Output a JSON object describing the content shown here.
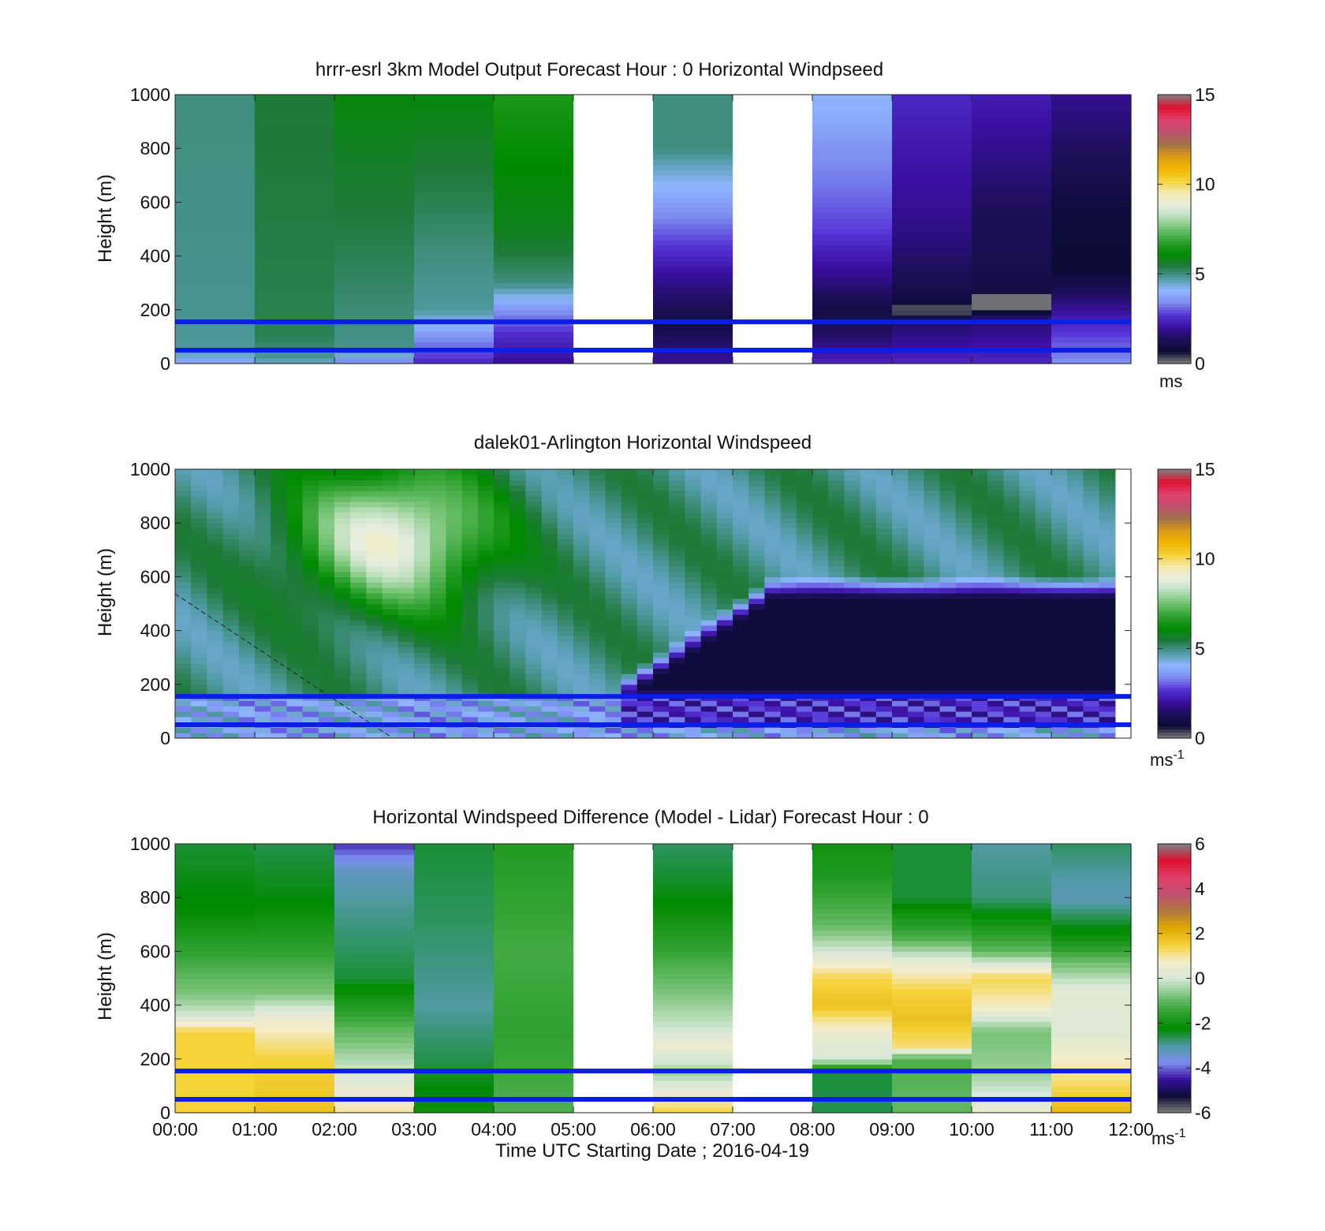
{
  "figure": {
    "xlabel": "Time UTC  Starting Date ; 2016-04-19",
    "time_ticks": [
      "00:00",
      "01:00",
      "02:00",
      "03:00",
      "04:00",
      "05:00",
      "06:00",
      "07:00",
      "08:00",
      "09:00",
      "10:00",
      "11:00",
      "12:00"
    ]
  },
  "colors": {
    "windspeed_colormap": [
      "#808080",
      "#0b0b33",
      "#1d0f5a",
      "#3a0fa0",
      "#5533d6",
      "#7d8ef0",
      "#8fb6ff",
      "#4f9aa3",
      "#1f7a3a",
      "#008a00",
      "#2fa12f",
      "#6cc06c",
      "#b7ddb7",
      "#e8eee0",
      "#f4e9b0",
      "#f5d23a",
      "#f0b500",
      "#d99a18",
      "#a0704a",
      "#c05070",
      "#e0406a",
      "#e01030",
      "#808080"
    ],
    "difference_colormap": [
      "#808080",
      "#0b0b33",
      "#3a0fa0",
      "#7d8ef0",
      "#4f9aa3",
      "#008a00",
      "#2fa12f",
      "#7cc47c",
      "#d8e8d8",
      "#f4eccb",
      "#f5d23a",
      "#e0a800",
      "#b07a40",
      "#c05070",
      "#e0406a",
      "#e01030",
      "#808080"
    ],
    "reference_line": "#0a1ee6",
    "missing": "#ffffff"
  },
  "chart_data": [
    {
      "type": "heatmap",
      "title": "hrrr-esrl 3km Model Output   Forecast Hour : 0 Horizontal Windpseed",
      "ylabel": "Height (m)",
      "xlim": [
        "00:00",
        "12:00"
      ],
      "ylim": [
        0,
        1000
      ],
      "yticks": [
        0,
        200,
        400,
        600,
        800,
        1000
      ],
      "colorbar": {
        "range": [
          0,
          15
        ],
        "ticks": [
          0,
          5,
          10,
          15
        ],
        "unit": "ms"
      },
      "reference_lines_m": [
        50,
        155
      ],
      "columns": [
        {
          "time": "00:00",
          "profile": [
            [
              0,
              3.5
            ],
            [
              40,
              4.8
            ],
            [
              200,
              4.9
            ],
            [
              1000,
              5.0
            ]
          ]
        },
        {
          "time": "01:00",
          "profile": [
            [
              0,
              4.5
            ],
            [
              40,
              5.0
            ],
            [
              100,
              5.3
            ],
            [
              1000,
              5.5
            ]
          ]
        },
        {
          "time": "02:00",
          "profile": [
            [
              0,
              3.0
            ],
            [
              40,
              4.9
            ],
            [
              150,
              5.0
            ],
            [
              400,
              5.3
            ],
            [
              700,
              5.6
            ],
            [
              1000,
              6.0
            ]
          ]
        },
        {
          "time": "03:00",
          "profile": [
            [
              0,
              2.5
            ],
            [
              100,
              3.5
            ],
            [
              200,
              4.8
            ],
            [
              400,
              5.0
            ],
            [
              600,
              5.3
            ],
            [
              800,
              5.6
            ],
            [
              1000,
              6.0
            ]
          ]
        },
        {
          "time": "04:00",
          "profile": [
            [
              0,
              2.0
            ],
            [
              100,
              2.5
            ],
            [
              200,
              3.5
            ],
            [
              300,
              5.0
            ],
            [
              500,
              5.8
            ],
            [
              1000,
              6.5
            ]
          ]
        },
        {
          "time": "05:00",
          "profile": null
        },
        {
          "time": "06:00",
          "profile": [
            [
              0,
              2.0
            ],
            [
              150,
              1.0
            ],
            [
              300,
              1.8
            ],
            [
              450,
              2.8
            ],
            [
              550,
              3.4
            ],
            [
              650,
              4.0
            ],
            [
              800,
              5.0
            ],
            [
              1000,
              5.0
            ]
          ]
        },
        {
          "time": "07:00",
          "profile": null
        },
        {
          "time": "08:00",
          "profile": [
            [
              0,
              2.5
            ],
            [
              100,
              1.5
            ],
            [
              200,
              1.0
            ],
            [
              350,
              2.0
            ],
            [
              500,
              2.8
            ],
            [
              650,
              3.2
            ],
            [
              800,
              3.5
            ],
            [
              950,
              4.0
            ],
            [
              1000,
              4.0
            ]
          ]
        },
        {
          "time": "09:00",
          "profile": [
            [
              0,
              2.5
            ],
            [
              150,
              1.5
            ],
            [
              200,
              0.1
            ],
            [
              240,
              1.0
            ],
            [
              500,
              1.8
            ],
            [
              1000,
              2.5
            ]
          ]
        },
        {
          "time": "10:00",
          "profile": [
            [
              0,
              2.5
            ],
            [
              180,
              1.5
            ],
            [
              200,
              0.1
            ],
            [
              250,
              0.1
            ],
            [
              260,
              1.0
            ],
            [
              600,
              1.4
            ],
            [
              1000,
              2.3
            ]
          ]
        },
        {
          "time": "11:00",
          "profile": [
            [
              0,
              3.5
            ],
            [
              150,
              2.5
            ],
            [
              250,
              1.5
            ],
            [
              350,
              0.7
            ],
            [
              600,
              0.9
            ],
            [
              1000,
              1.9
            ]
          ]
        }
      ]
    },
    {
      "type": "heatmap",
      "title": "dalek01-Arlington  Horizontal Windspeed",
      "ylabel": "Height (m)",
      "xlim": [
        "00:00",
        "12:00"
      ],
      "ylim": [
        0,
        1000
      ],
      "yticks": [
        0,
        200,
        400,
        600,
        800,
        1000
      ],
      "colorbar": {
        "range": [
          0,
          15
        ],
        "ticks": [
          0,
          5,
          10,
          15
        ],
        "unit": "ms",
        "unit_superscript": "-1"
      },
      "reference_lines_m": [
        50,
        155
      ],
      "data_end": "11:48",
      "features": {
        "high_wind_core": {
          "time_center": "02:45",
          "height_center_m": 750,
          "max_ms": 9.0
        },
        "low_level_minimum": {
          "time_range": [
            "06:30",
            "12:00"
          ],
          "height_range_m": [
            200,
            600
          ],
          "min_ms": 0.8
        },
        "upper_level_ms": 5.0,
        "surface_layer_ms": 3.2
      }
    },
    {
      "type": "heatmap",
      "title": "Horizontal Windspeed Difference (Model - Lidar) Forecast Hour : 0",
      "ylabel": "Height (m)",
      "xlim": [
        "00:00",
        "12:00"
      ],
      "ylim": [
        0,
        1000
      ],
      "yticks": [
        0,
        200,
        400,
        600,
        800,
        1000
      ],
      "colorbar": {
        "range": [
          -6,
          6
        ],
        "ticks": [
          -6,
          -4,
          -2,
          0,
          2,
          4,
          6
        ],
        "unit": "ms",
        "unit_superscript": "-1"
      },
      "reference_lines_m": [
        50,
        155
      ],
      "columns": [
        {
          "time": "00:00",
          "profile": [
            [
              0,
              1.5
            ],
            [
              200,
              1.5
            ],
            [
              300,
              1.5
            ],
            [
              360,
              0.0
            ],
            [
              450,
              -0.8
            ],
            [
              600,
              -1.5
            ],
            [
              750,
              -2.2
            ],
            [
              1000,
              -2.5
            ]
          ]
        },
        {
          "time": "01:00",
          "profile": [
            [
              0,
              1.8
            ],
            [
              200,
              1.5
            ],
            [
              350,
              0.5
            ],
            [
              450,
              -0.8
            ],
            [
              600,
              -1.5
            ],
            [
              800,
              -2.3
            ],
            [
              1000,
              -2.6
            ]
          ]
        },
        {
          "time": "02:00",
          "profile": [
            [
              0,
              1.0
            ],
            [
              150,
              0.0
            ],
            [
              300,
              -1.0
            ],
            [
              500,
              -2.5
            ],
            [
              800,
              -3.0
            ],
            [
              900,
              -3.3
            ],
            [
              1000,
              -4.3
            ]
          ]
        },
        {
          "time": "03:00",
          "profile": [
            [
              0,
              -2.0
            ],
            [
              200,
              -2.6
            ],
            [
              400,
              -3.0
            ],
            [
              700,
              -2.7
            ],
            [
              1000,
              -2.5
            ]
          ]
        },
        {
          "time": "04:00",
          "profile": [
            [
              0,
              -1.2
            ],
            [
              300,
              -1.5
            ],
            [
              600,
              -1.3
            ],
            [
              800,
              -1.5
            ],
            [
              1000,
              -1.7
            ]
          ]
        },
        {
          "time": "05:00",
          "profile": null
        },
        {
          "time": "06:00",
          "profile": [
            [
              0,
              1.5
            ],
            [
              150,
              -0.5
            ],
            [
              250,
              0.6
            ],
            [
              300,
              0.0
            ],
            [
              500,
              -1.0
            ],
            [
              800,
              -2.3
            ],
            [
              1000,
              -2.7
            ]
          ]
        },
        {
          "time": "07:00",
          "profile": null
        },
        {
          "time": "08:00",
          "profile": [
            [
              0,
              -2.6
            ],
            [
              150,
              -2.5
            ],
            [
              200,
              0.0
            ],
            [
              300,
              0.5
            ],
            [
              400,
              1.8
            ],
            [
              500,
              1.4
            ],
            [
              600,
              0.0
            ],
            [
              700,
              -1.0
            ],
            [
              900,
              -1.8
            ],
            [
              1000,
              -2.0
            ]
          ]
        },
        {
          "time": "09:00",
          "profile": [
            [
              0,
              -1.0
            ],
            [
              200,
              -1.2
            ],
            [
              250,
              1.2
            ],
            [
              350,
              1.8
            ],
            [
              450,
              1.5
            ],
            [
              550,
              0.5
            ],
            [
              650,
              -1.2
            ],
            [
              800,
              -2.5
            ],
            [
              1000,
              -2.5
            ]
          ]
        },
        {
          "time": "10:00",
          "profile": [
            [
              0,
              0.5
            ],
            [
              150,
              -0.5
            ],
            [
              300,
              -0.8
            ],
            [
              400,
              0.8
            ],
            [
              500,
              1.4
            ],
            [
              600,
              -1.0
            ],
            [
              800,
              -2.8
            ],
            [
              1000,
              -3.0
            ]
          ]
        },
        {
          "time": "11:00",
          "profile": [
            [
              0,
              2.0
            ],
            [
              150,
              1.0
            ],
            [
              300,
              0.2
            ],
            [
              450,
              0.3
            ],
            [
              550,
              -0.8
            ],
            [
              650,
              -2.0
            ],
            [
              800,
              -3.2
            ],
            [
              1000,
              -2.7
            ]
          ]
        }
      ]
    }
  ]
}
